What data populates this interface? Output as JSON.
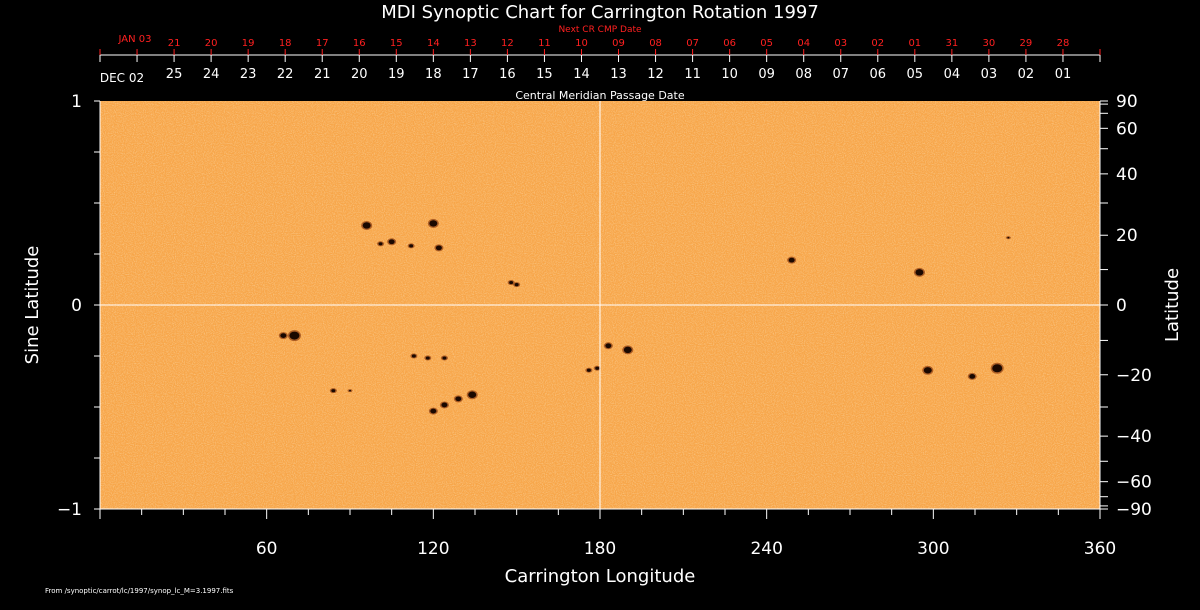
{
  "chart_data": {
    "type": "scatter",
    "title": "MDI Synoptic Chart for Carrington Rotation 1997",
    "xlabel": "Carrington Longitude",
    "ylabel_left": "Sine Latitude",
    "ylabel_right": "Latitude",
    "xlim": [
      0,
      360
    ],
    "ylim": [
      -1,
      1
    ],
    "x_ticks": [
      60,
      120,
      180,
      240,
      300,
      360
    ],
    "y_ticks_left": [
      {
        "v": 1,
        "label": "1"
      },
      {
        "v": 0,
        "label": "0"
      },
      {
        "v": -1,
        "label": "−1"
      }
    ],
    "y_ticks_right": [
      90,
      60,
      40,
      20,
      0,
      -20,
      -40,
      -60,
      -90
    ],
    "cmp_axis_label": "Central Meridian Passage Date",
    "cmp_start_label": "DEC 02",
    "cmp_dates": [
      "25",
      "24",
      "23",
      "22",
      "21",
      "20",
      "19",
      "18",
      "17",
      "16",
      "15",
      "14",
      "13",
      "12",
      "11",
      "10",
      "09",
      "08",
      "07",
      "06",
      "05",
      "04",
      "03",
      "02",
      "01"
    ],
    "next_axis_label": "Next CR CMP Date",
    "next_start_label": "JAN 03",
    "next_dates": [
      "21",
      "20",
      "19",
      "18",
      "17",
      "16",
      "15",
      "14",
      "13",
      "12",
      "11",
      "10",
      "09",
      "08",
      "07",
      "06",
      "05",
      "04",
      "03",
      "02",
      "01",
      "31",
      "30",
      "29",
      "28"
    ],
    "central_meridian_longitude": 180,
    "background_color": "#f7a64a",
    "spot_color": "#1a0800",
    "grid_color": "#ffffff",
    "sunspots": [
      {
        "lon": 96,
        "lat": 0.39,
        "size": 4
      },
      {
        "lon": 105,
        "lat": 0.31,
        "size": 3
      },
      {
        "lon": 101,
        "lat": 0.3,
        "size": 2
      },
      {
        "lon": 112,
        "lat": 0.29,
        "size": 2
      },
      {
        "lon": 120,
        "lat": 0.4,
        "size": 4
      },
      {
        "lon": 122,
        "lat": 0.28,
        "size": 3
      },
      {
        "lon": 148,
        "lat": 0.11,
        "size": 2
      },
      {
        "lon": 150,
        "lat": 0.1,
        "size": 2
      },
      {
        "lon": 70,
        "lat": -0.15,
        "size": 5
      },
      {
        "lon": 66,
        "lat": -0.15,
        "size": 3
      },
      {
        "lon": 113,
        "lat": -0.25,
        "size": 2
      },
      {
        "lon": 118,
        "lat": -0.26,
        "size": 2
      },
      {
        "lon": 124,
        "lat": -0.26,
        "size": 2
      },
      {
        "lon": 84,
        "lat": -0.42,
        "size": 2
      },
      {
        "lon": 90,
        "lat": -0.42,
        "size": 1
      },
      {
        "lon": 120,
        "lat": -0.52,
        "size": 3
      },
      {
        "lon": 124,
        "lat": -0.49,
        "size": 3
      },
      {
        "lon": 129,
        "lat": -0.46,
        "size": 3
      },
      {
        "lon": 134,
        "lat": -0.44,
        "size": 4
      },
      {
        "lon": 176,
        "lat": -0.32,
        "size": 2
      },
      {
        "lon": 179,
        "lat": -0.31,
        "size": 2
      },
      {
        "lon": 183,
        "lat": -0.2,
        "size": 3
      },
      {
        "lon": 190,
        "lat": -0.22,
        "size": 4
      },
      {
        "lon": 249,
        "lat": 0.22,
        "size": 3
      },
      {
        "lon": 295,
        "lat": 0.16,
        "size": 4
      },
      {
        "lon": 298,
        "lat": -0.32,
        "size": 4
      },
      {
        "lon": 314,
        "lat": -0.35,
        "size": 3
      },
      {
        "lon": 323,
        "lat": -0.31,
        "size": 5
      },
      {
        "lon": 327,
        "lat": 0.33,
        "size": 1
      }
    ]
  },
  "footer_path": "From /synoptic/carrot/lc/1997/synop_lc_M=3.1997.fits"
}
